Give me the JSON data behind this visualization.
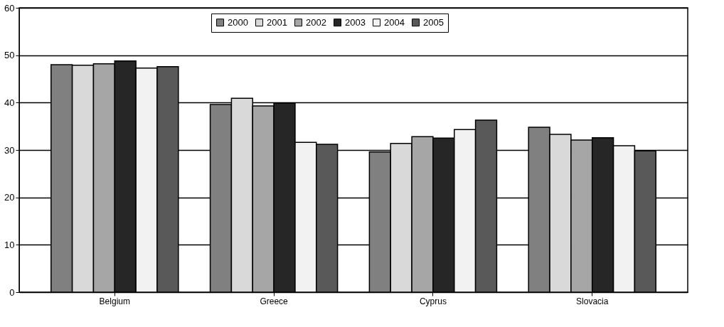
{
  "chart_data": {
    "type": "bar",
    "categories": [
      "Belgium",
      "Greece",
      "Cyprus",
      "Slovacia"
    ],
    "series": [
      {
        "name": "2000",
        "color": "#808080",
        "values": [
          48.0,
          39.6,
          29.6,
          34.8
        ]
      },
      {
        "name": "2001",
        "color": "#d9d9d9",
        "values": [
          47.9,
          40.9,
          31.4,
          33.3
        ]
      },
      {
        "name": "2002",
        "color": "#a6a6a6",
        "values": [
          48.2,
          39.3,
          32.8,
          32.1
        ]
      },
      {
        "name": "2003",
        "color": "#262626",
        "values": [
          48.8,
          39.9,
          32.5,
          32.6
        ]
      },
      {
        "name": "2004",
        "color": "#f2f2f2",
        "values": [
          47.3,
          31.6,
          34.3,
          30.9
        ]
      },
      {
        "name": "2005",
        "color": "#595959",
        "values": [
          47.6,
          31.2,
          36.3,
          29.8
        ]
      }
    ],
    "ylim": [
      0,
      60
    ],
    "yticks": [
      0,
      10,
      20,
      30,
      40,
      50,
      60
    ],
    "grid": "y",
    "legend": "top"
  }
}
